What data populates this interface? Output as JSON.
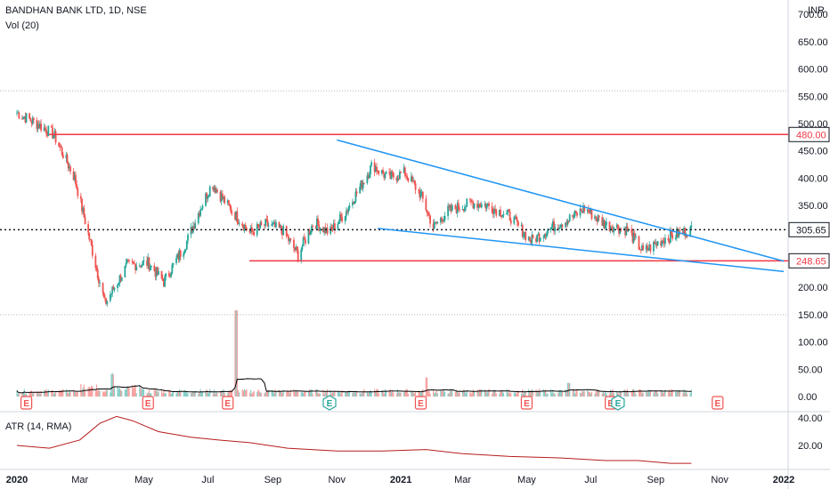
{
  "header": {
    "symbol_line": "BANDHAN BANK LTD, 1D, NSE",
    "volume_label": "Vol (20)",
    "atr_label": "ATR (14, RMA)",
    "currency": "INR"
  },
  "colors": {
    "up": "#26a69a",
    "down": "#ef5350",
    "trendline": "#2196f3",
    "level": "#f23645",
    "volume_ma": "#000000",
    "atr": "#b71c1c",
    "earnings": "#ef5350",
    "dividend": "#26a69a"
  },
  "chart_data": [
    {
      "type": "candlestick",
      "price_axis": {
        "ticks": [
          "700.00",
          "650.00",
          "600.00",
          "550.00",
          "500.00",
          "450.00",
          "400.00",
          "350.00",
          "300.00",
          "250.00",
          "200.00",
          "150.00",
          "100.00",
          "50.00",
          "0.00"
        ],
        "range": [
          0,
          710
        ]
      },
      "time_axis": {
        "labels": [
          "2020",
          "Mar",
          "May",
          "Jul",
          "Sep",
          "Nov",
          "2021",
          "Mar",
          "May",
          "Jul",
          "Sep",
          "Nov",
          "2022"
        ]
      },
      "horizontal_levels": [
        {
          "label": "480.00",
          "value": 480
        },
        {
          "label": "248.65",
          "value": 248.65
        }
      ],
      "current_price": {
        "label": "305.65",
        "value": 305.65
      },
      "trendlines": [
        {
          "name": "upper",
          "from": [
            "2020-11-01",
            470
          ],
          "to": [
            "2022-01-01",
            248
          ]
        },
        {
          "name": "lower",
          "from": [
            "2020-12-10",
            308
          ],
          "to": [
            "2022-01-01",
            229
          ]
        }
      ],
      "price_path": [
        [
          "2020-01-01",
          520
        ],
        [
          "2020-01-20",
          500
        ],
        [
          "2020-02-05",
          480
        ],
        [
          "2020-02-15",
          440
        ],
        [
          "2020-02-25",
          400
        ],
        [
          "2020-03-10",
          290
        ],
        [
          "2020-03-25",
          170
        ],
        [
          "2020-04-15",
          240
        ],
        [
          "2020-05-05",
          245
        ],
        [
          "2020-05-20",
          210
        ],
        [
          "2020-06-10",
          280
        ],
        [
          "2020-06-25",
          350
        ],
        [
          "2020-07-05",
          390
        ],
        [
          "2020-07-20",
          350
        ],
        [
          "2020-08-10",
          300
        ],
        [
          "2020-08-25",
          315
        ],
        [
          "2020-09-10",
          305
        ],
        [
          "2020-09-25",
          260
        ],
        [
          "2020-10-10",
          320
        ],
        [
          "2020-10-25",
          300
        ],
        [
          "2020-11-10",
          340
        ],
        [
          "2020-11-25",
          390
        ],
        [
          "2020-12-05",
          425
        ],
        [
          "2020-12-20",
          400
        ],
        [
          "2021-01-05",
          410
        ],
        [
          "2021-01-20",
          370
        ],
        [
          "2021-02-01",
          310
        ],
        [
          "2021-02-15",
          340
        ],
        [
          "2021-03-10",
          355
        ],
        [
          "2021-03-25",
          350
        ],
        [
          "2021-04-15",
          330
        ],
        [
          "2021-05-05",
          285
        ],
        [
          "2021-05-25",
          310
        ],
        [
          "2021-06-15",
          330
        ],
        [
          "2021-06-25",
          345
        ],
        [
          "2021-07-15",
          315
        ],
        [
          "2021-08-05",
          305
        ],
        [
          "2021-08-20",
          265
        ],
        [
          "2021-09-10",
          290
        ],
        [
          "2021-09-25",
          300
        ],
        [
          "2021-10-05",
          305.65
        ]
      ],
      "events": [
        {
          "type": "earnings",
          "label": "E",
          "date": "2020-01-10"
        },
        {
          "type": "earnings",
          "label": "E",
          "date": "2020-05-05"
        },
        {
          "type": "earnings",
          "label": "E",
          "date": "2020-07-20"
        },
        {
          "type": "dividend",
          "label": "E",
          "date": "2020-10-25"
        },
        {
          "type": "earnings",
          "label": "E",
          "date": "2021-01-20"
        },
        {
          "type": "earnings",
          "label": "E",
          "date": "2021-05-01"
        },
        {
          "type": "earnings",
          "label": "E",
          "date": "2021-07-20"
        },
        {
          "type": "dividend",
          "label": "E",
          "date": "2021-07-27"
        },
        {
          "type": "earnings",
          "label": "E",
          "date": "2021-10-30"
        }
      ]
    },
    {
      "type": "bar",
      "name": "Vol (20)",
      "volume_spikes": [
        {
          "date": "2020-07-28",
          "value": 158
        },
        {
          "date": "2020-04-01",
          "value": 40
        },
        {
          "date": "2021-01-25",
          "value": 35
        },
        {
          "date": "2021-06-10",
          "value": 25
        }
      ]
    },
    {
      "type": "line",
      "name": "ATR (14, RMA)",
      "y_axis": {
        "ticks": [
          "40.00",
          "20.00"
        ],
        "range": [
          0,
          45
        ]
      },
      "values": [
        [
          "2020-01-01",
          20
        ],
        [
          "2020-02-01",
          18
        ],
        [
          "2020-03-01",
          24
        ],
        [
          "2020-03-20",
          36
        ],
        [
          "2020-04-05",
          41
        ],
        [
          "2020-04-20",
          38
        ],
        [
          "2020-05-15",
          30
        ],
        [
          "2020-06-15",
          26
        ],
        [
          "2020-07-10",
          24
        ],
        [
          "2020-08-10",
          22
        ],
        [
          "2020-09-15",
          18
        ],
        [
          "2020-11-01",
          16
        ],
        [
          "2020-12-15",
          16
        ],
        [
          "2021-01-25",
          17
        ],
        [
          "2021-03-01",
          14
        ],
        [
          "2021-04-15",
          12
        ],
        [
          "2021-06-01",
          11
        ],
        [
          "2021-07-15",
          9
        ],
        [
          "2021-08-15",
          9
        ],
        [
          "2021-09-15",
          7
        ],
        [
          "2021-10-05",
          7
        ]
      ]
    }
  ]
}
